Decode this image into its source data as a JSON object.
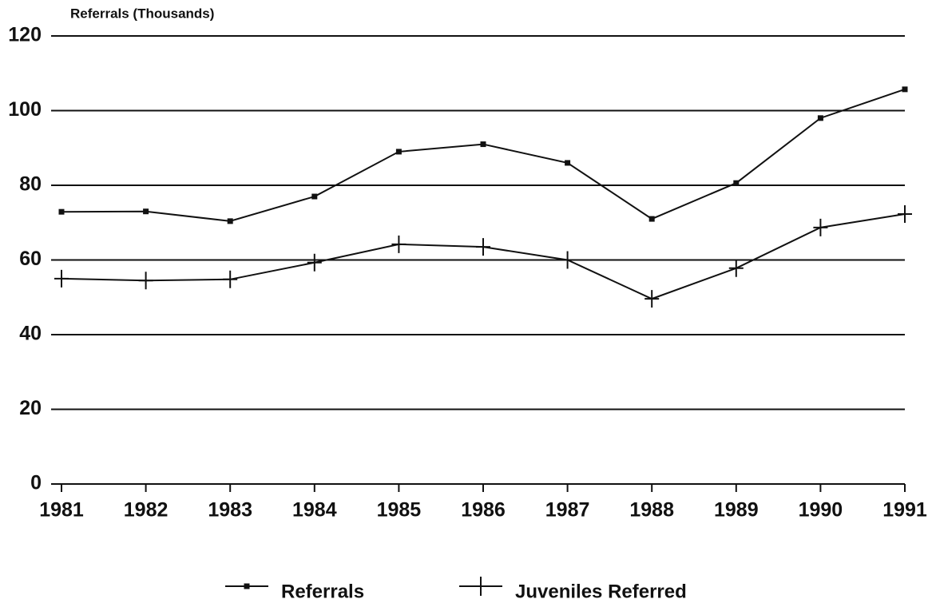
{
  "chart_data": {
    "type": "line",
    "y_label": "Referrals (Thousands)",
    "x": [
      1981,
      1982,
      1983,
      1984,
      1985,
      1986,
      1987,
      1988,
      1989,
      1990,
      1991
    ],
    "xlim": [
      1981,
      1991
    ],
    "xticks": [
      1981,
      1982,
      1983,
      1984,
      1985,
      1986,
      1987,
      1988,
      1989,
      1990,
      1991
    ],
    "ylim": [
      0,
      120
    ],
    "yticks": [
      0,
      20,
      40,
      60,
      80,
      100,
      120
    ],
    "grid": true,
    "legend": "bottom",
    "series": [
      {
        "name": "Referrals",
        "color": "#111111",
        "marker": "square",
        "values": [
          72.9,
          73,
          70.4,
          77,
          89,
          91,
          86,
          71,
          80.6,
          98,
          105.7
        ]
      },
      {
        "name": "Juveniles Referred",
        "color": "#111111",
        "marker": "plus",
        "values": [
          55,
          54.5,
          54.8,
          59.3,
          64.2,
          63.5,
          60,
          49.6,
          57.8,
          68.7,
          72.3
        ]
      }
    ]
  }
}
